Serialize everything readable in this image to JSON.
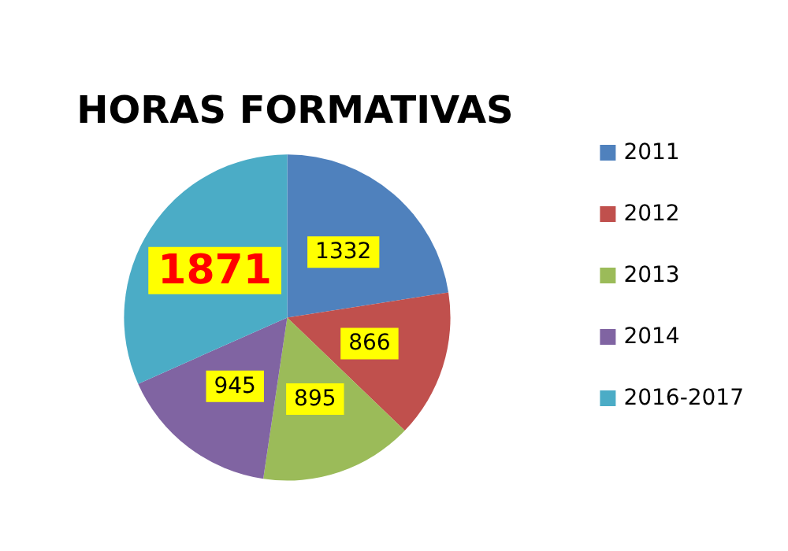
{
  "chart_data": {
    "type": "pie",
    "title": "HORAS FORMATIVAS",
    "categories": [
      "2011",
      "2012",
      "2013",
      "2014",
      "2016-2017"
    ],
    "values": [
      1332,
      866,
      895,
      945,
      1871
    ],
    "colors": [
      "#4f81bd",
      "#c0504d",
      "#9bbb59",
      "#8064a2",
      "#4bacc6"
    ],
    "data_labels": true,
    "legend": "right"
  }
}
